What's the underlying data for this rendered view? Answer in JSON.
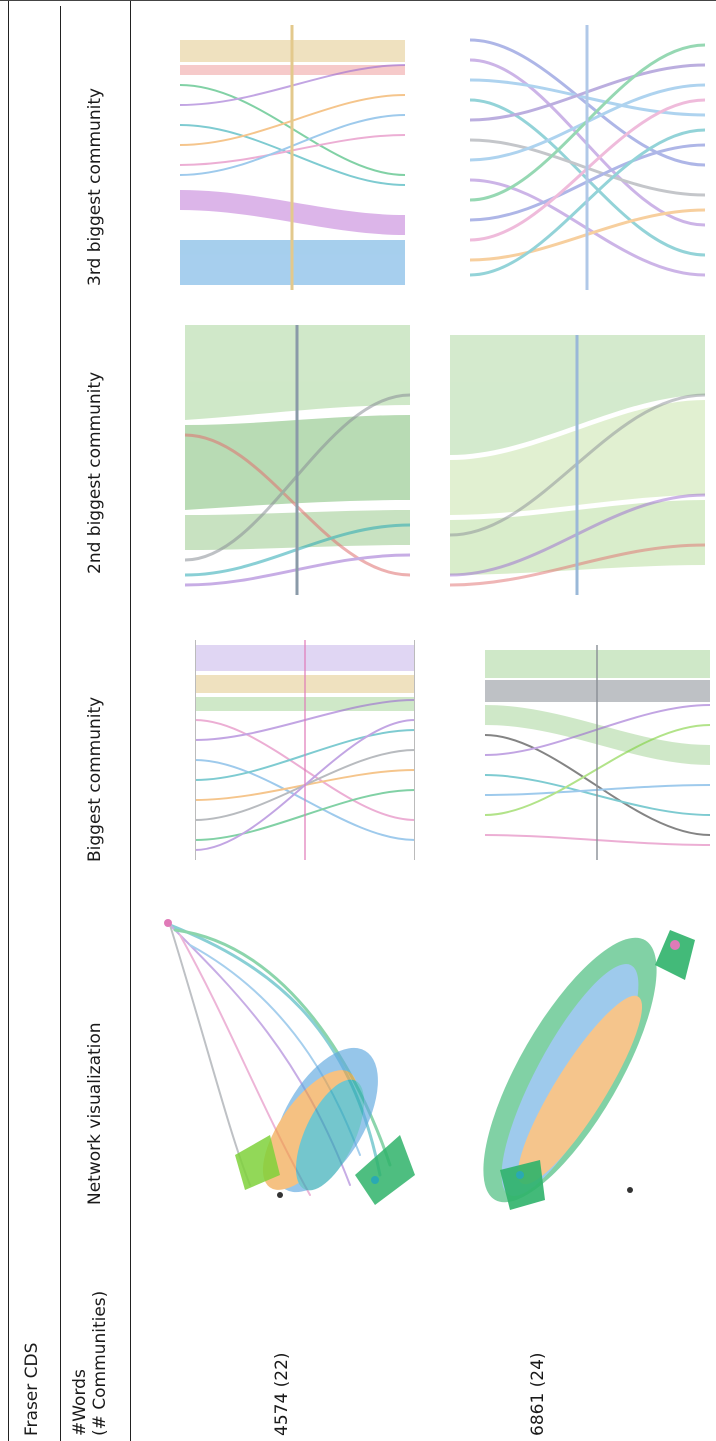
{
  "table": {
    "title": "Fraser CDS",
    "headers": {
      "words": "#Words\n(# Communities)",
      "network": "Network visualization",
      "biggest": "Biggest community",
      "second": "2nd biggest community",
      "third": "3rd biggest community"
    },
    "rows": [
      {
        "words": "4574 (22)"
      },
      {
        "words": "6861 (24)"
      }
    ]
  },
  "palette": {
    "green": "#2fb36a",
    "lime": "#7fd13b",
    "teal": "#2aa9b3",
    "purple": "#9b6bd1",
    "pink": "#e07ab8",
    "blue": "#5fa8e0",
    "orange": "#f0a040",
    "tan": "#e3c98c",
    "lavender": "#c7b6ea",
    "gray": "#8a8f96",
    "sage": "#a9d69c"
  }
}
